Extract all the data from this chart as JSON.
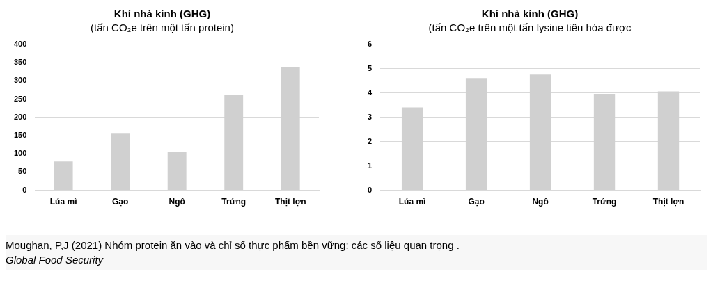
{
  "chart_data": [
    {
      "type": "bar",
      "title": "Khí nhà kính (GHG)",
      "subtitle": "(tấn CO₂e trên một tấn protein)",
      "categories": [
        "Lúa mì",
        "Gạo",
        "Ngô",
        "Trứng",
        "Thịt lợn"
      ],
      "values": [
        79,
        157,
        105,
        262,
        339
      ],
      "color": "#d0d0d0",
      "ylim": [
        0,
        400
      ],
      "yticks": [
        0,
        50,
        100,
        150,
        200,
        250,
        300,
        350,
        400
      ],
      "grid": "y",
      "legend": false,
      "annotations": [
        "Moughan, P,J (2021) Nhóm protein ăn vào và chỉ số thực phẩm bền vững: các số liệu quan trọng .",
        "Global Food Security"
      ]
    },
    {
      "type": "bar",
      "title": "Khí nhà kính (GHG)",
      "subtitle": "(tấn CO₂e trên một tấn lysine tiêu hóa được",
      "categories": [
        "Lúa mì",
        "Gạo",
        "Ngô",
        "Trứng",
        "Thịt lợn"
      ],
      "values": [
        3.41,
        4.62,
        4.76,
        3.97,
        4.07
      ],
      "color": "#d0d0d0",
      "ylim": [
        0,
        6
      ],
      "yticks": [
        0,
        1,
        2,
        3,
        4,
        5,
        6
      ],
      "grid": "y",
      "legend": false
    }
  ]
}
